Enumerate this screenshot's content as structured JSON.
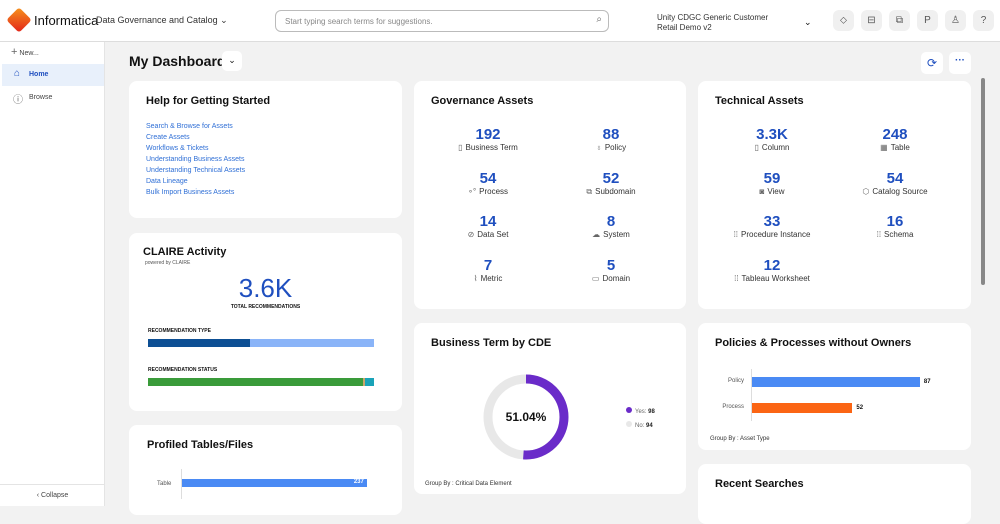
{
  "header": {
    "brand": "Informatica",
    "product": "Data Governance and Catalog",
    "search_placeholder": "Start typing search terms for suggestions.",
    "org": "Unity CDGC Generic Customer Retail Demo v2",
    "icons": [
      "tag-icon",
      "inbox-icon",
      "copy-icon",
      "flag-icon",
      "user-icon",
      "help-icon"
    ],
    "icon_glyphs": [
      "⬦",
      "⊟",
      "⧉",
      "P",
      "♙",
      "?"
    ]
  },
  "sidebar": {
    "new": "New...",
    "items": [
      {
        "label": "Home",
        "active": true
      },
      {
        "label": "Browse"
      }
    ],
    "collapse": "Collapse"
  },
  "page": {
    "title": "My Dashboard"
  },
  "help": {
    "title": "Help for Getting Started",
    "links": [
      "Search & Browse for Assets",
      "Create Assets",
      "Workflows & Tickets",
      "Understanding Business Assets",
      "Understanding Technical Assets",
      "Data Lineage",
      "Bulk Import Business Assets"
    ]
  },
  "claire": {
    "title": "CLAIRE Activity",
    "powered": "powered by CLAIRE",
    "total": "3.6K",
    "total_label": "TOTAL RECOMMENDATIONS",
    "type_label": "RECOMMENDATION TYPE",
    "status_label": "RECOMMENDATION STATUS",
    "type_segments": [
      {
        "frac": 0.45,
        "color": "#0d4f94"
      },
      {
        "frac": 0.55,
        "color": "#8ab4f8"
      }
    ],
    "status_segments": [
      {
        "frac": 0.95,
        "color": "#3a9b3a"
      },
      {
        "frac": 0.01,
        "color": "#c9a66b"
      },
      {
        "frac": 0.04,
        "color": "#1aa3b8"
      }
    ]
  },
  "profiled": {
    "title": "Profiled Tables/Files",
    "category": "Table",
    "value": 237,
    "value_label": "237"
  },
  "governance": {
    "title": "Governance Assets",
    "items": [
      {
        "n": "192",
        "l": "Business Term",
        "ic": "▯"
      },
      {
        "n": "88",
        "l": "Policy",
        "ic": "♁"
      },
      {
        "n": "54",
        "l": "Process",
        "ic": "∘°"
      },
      {
        "n": "52",
        "l": "Subdomain",
        "ic": "⧉"
      },
      {
        "n": "14",
        "l": "Data Set",
        "ic": "⊘"
      },
      {
        "n": "8",
        "l": "System",
        "ic": "☁"
      },
      {
        "n": "7",
        "l": "Metric",
        "ic": "⌇"
      },
      {
        "n": "5",
        "l": "Domain",
        "ic": "▭"
      }
    ]
  },
  "technical": {
    "title": "Technical Assets",
    "items": [
      {
        "n": "3.3K",
        "l": "Column",
        "ic": "▯"
      },
      {
        "n": "248",
        "l": "Table",
        "ic": "▦"
      },
      {
        "n": "59",
        "l": "View",
        "ic": "◙"
      },
      {
        "n": "54",
        "l": "Catalog Source",
        "ic": "⬡"
      },
      {
        "n": "33",
        "l": "Procedure Instance",
        "ic": "⁞⁞"
      },
      {
        "n": "16",
        "l": "Schema",
        "ic": "⁞⁞"
      },
      {
        "n": "12",
        "l": "Tableau Worksheet",
        "ic": "⁞⁞"
      }
    ]
  },
  "cde": {
    "title": "Business Term by CDE",
    "center": "51.04%",
    "yes_label": "Yes:",
    "yes": 98,
    "yes_text": "98",
    "no_label": "No:",
    "no": 94,
    "no_text": "94",
    "yes_color": "#6a2bc9",
    "no_color": "#e8e8e8",
    "group_by": "Group By : Critical Data Element"
  },
  "policies": {
    "title": "Policies & Processes without Owners",
    "bars": [
      {
        "label": "Policy",
        "value": 87,
        "text": "87",
        "color": "#4a8af4"
      },
      {
        "label": "Process",
        "value": 52,
        "text": "52",
        "color": "#fb6514"
      }
    ],
    "group_by": "Group By : Asset Type"
  },
  "recent": {
    "title": "Recent Searches"
  }
}
